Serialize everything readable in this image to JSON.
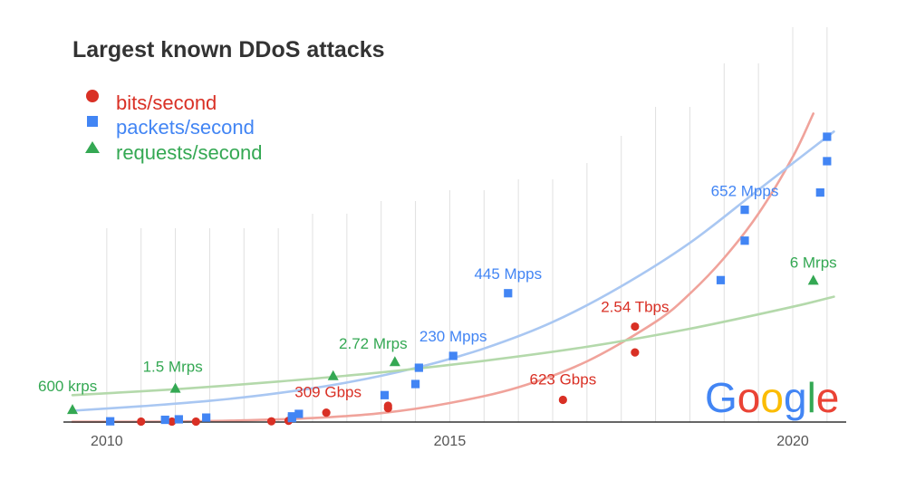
{
  "chart_data": {
    "type": "scatter",
    "title": "Largest known DDoS attacks",
    "xlabel": "",
    "ylabel": "",
    "x_ticks": [
      2010,
      2015,
      2020
    ],
    "xlim": [
      2009.5,
      2020.7
    ],
    "gridlines_x": [
      2010,
      2010.5,
      2011,
      2011.5,
      2012,
      2012.5,
      2013,
      2013.5,
      2014,
      2014.5,
      2015,
      2015.5,
      2016,
      2016.5,
      2017,
      2017.5,
      2018,
      2018.5,
      2019,
      2019.5,
      2020,
      2020.5
    ],
    "grid": true,
    "legend_position": "top-left",
    "y_axis_visible": false,
    "series": [
      {
        "name": "bits/second",
        "marker": "circle",
        "color": "#d93025",
        "trend_color": "#f0a39b",
        "points": [
          {
            "x": 2010.5,
            "y": 0.2
          },
          {
            "x": 2010.95,
            "y": 0.2
          },
          {
            "x": 2011.3,
            "y": 0.2
          },
          {
            "x": 2012.4,
            "y": 0.3
          },
          {
            "x": 2012.65,
            "y": 0.5
          },
          {
            "x": 2013.2,
            "y": 3.8
          },
          {
            "x": 2014.1,
            "y": 5.6
          },
          {
            "x": 2014.1,
            "y": 6.6
          },
          {
            "x": 2016.65,
            "y": 9.0
          },
          {
            "x": 2017.7,
            "y": 28.2
          },
          {
            "x": 2017.7,
            "y": 38.7
          }
        ],
        "trend": [
          {
            "x": 2009.5,
            "y": 0.1
          },
          {
            "x": 2011,
            "y": 0.2
          },
          {
            "x": 2012,
            "y": 0.7
          },
          {
            "x": 2013,
            "y": 1.6
          },
          {
            "x": 2014,
            "y": 3.6
          },
          {
            "x": 2015,
            "y": 7.7
          },
          {
            "x": 2016,
            "y": 14.1
          },
          {
            "x": 2017,
            "y": 24.6
          },
          {
            "x": 2018,
            "y": 40.6
          },
          {
            "x": 2018.5,
            "y": 52.0
          },
          {
            "x": 2019,
            "y": 66.5
          },
          {
            "x": 2019.5,
            "y": 84.4
          },
          {
            "x": 2020,
            "y": 107.4
          },
          {
            "x": 2020.3,
            "y": 125.0
          }
        ]
      },
      {
        "name": "packets/second",
        "marker": "square",
        "color": "#4285f4",
        "trend_color": "#a9c7f2",
        "points": [
          {
            "x": 2010.05,
            "y": 0.3
          },
          {
            "x": 2010.85,
            "y": 0.9
          },
          {
            "x": 2011.05,
            "y": 1.1
          },
          {
            "x": 2011.45,
            "y": 1.8
          },
          {
            "x": 2012.7,
            "y": 1.6
          },
          {
            "x": 2012.7,
            "y": 2.3
          },
          {
            "x": 2012.8,
            "y": 3.3
          },
          {
            "x": 2014.05,
            "y": 10.9
          },
          {
            "x": 2014.5,
            "y": 15.4
          },
          {
            "x": 2014.55,
            "y": 22.0
          },
          {
            "x": 2015.05,
            "y": 26.8
          },
          {
            "x": 2015.85,
            "y": 52.2
          },
          {
            "x": 2018.95,
            "y": 57.5
          },
          {
            "x": 2019.3,
            "y": 73.5
          },
          {
            "x": 2019.3,
            "y": 86.0
          },
          {
            "x": 2020.4,
            "y": 93.0
          },
          {
            "x": 2020.5,
            "y": 105.7
          },
          {
            "x": 2020.5,
            "y": 115.6
          }
        ],
        "trend": [
          {
            "x": 2009.5,
            "y": 4.6
          },
          {
            "x": 2010.5,
            "y": 6.4
          },
          {
            "x": 2011.5,
            "y": 8.6
          },
          {
            "x": 2012.5,
            "y": 11.7
          },
          {
            "x": 2013.5,
            "y": 16.0
          },
          {
            "x": 2014.5,
            "y": 21.9
          },
          {
            "x": 2015.5,
            "y": 29.8
          },
          {
            "x": 2016.5,
            "y": 40.5
          },
          {
            "x": 2017.5,
            "y": 55.0
          },
          {
            "x": 2018.5,
            "y": 72.6
          },
          {
            "x": 2019.5,
            "y": 94.1
          },
          {
            "x": 2020.6,
            "y": 117.7
          }
        ]
      },
      {
        "name": "requests/second",
        "marker": "triangle",
        "color": "#34a853",
        "trend_color": "#b4d9ab",
        "points": [
          {
            "x": 2009.5,
            "y": 5.1
          },
          {
            "x": 2011.0,
            "y": 13.7
          },
          {
            "x": 2013.3,
            "y": 18.8
          },
          {
            "x": 2014.2,
            "y": 24.5
          },
          {
            "x": 2020.3,
            "y": 57.5
          }
        ],
        "trend": [
          {
            "x": 2009.5,
            "y": 10.9
          },
          {
            "x": 2011,
            "y": 13.3
          },
          {
            "x": 2012.5,
            "y": 16.4
          },
          {
            "x": 2014,
            "y": 20.1
          },
          {
            "x": 2015.5,
            "y": 24.8
          },
          {
            "x": 2017,
            "y": 30.5
          },
          {
            "x": 2018.5,
            "y": 37.8
          },
          {
            "x": 2020,
            "y": 46.7
          },
          {
            "x": 2020.6,
            "y": 50.8
          }
        ]
      }
    ],
    "ylim": [
      0,
      160
    ],
    "annotations": [
      {
        "text": "600 krps",
        "series": "requests/second",
        "x": 2009.5,
        "y": 5.1,
        "anchor": "start",
        "dx": -38,
        "dy": -20
      },
      {
        "text": "1.5 Mrps",
        "series": "requests/second",
        "x": 2011.0,
        "y": 13.7,
        "anchor": "start",
        "dx": -36,
        "dy": -18
      },
      {
        "text": "309 Gbps",
        "series": "bits/second",
        "x": 2013.2,
        "y": 3.8,
        "anchor": "middle",
        "dx": 2,
        "dy": -17
      },
      {
        "text": "2.72 Mrps",
        "series": "requests/second",
        "x": 2014.2,
        "y": 24.5,
        "anchor": "middle",
        "dx": -24,
        "dy": -14
      },
      {
        "text": "230 Mpps",
        "series": "packets/second",
        "x": 2015.05,
        "y": 26.8,
        "anchor": "middle",
        "dx": 0,
        "dy": -16
      },
      {
        "text": "445 Mpps",
        "series": "packets/second",
        "x": 2015.85,
        "y": 52.2,
        "anchor": "middle",
        "dx": 0,
        "dy": -16
      },
      {
        "text": "623 Gbps",
        "series": "bits/second",
        "x": 2016.65,
        "y": 9.0,
        "anchor": "middle",
        "dx": 0,
        "dy": -17
      },
      {
        "text": "2.54 Tbps",
        "series": "bits/second",
        "x": 2017.7,
        "y": 38.7,
        "anchor": "middle",
        "dx": 0,
        "dy": -16
      },
      {
        "text": "652 Mpps",
        "series": "packets/second",
        "x": 2019.3,
        "y": 86.0,
        "anchor": "middle",
        "dx": 0,
        "dy": -15
      },
      {
        "text": "6 Mrps",
        "series": "requests/second",
        "x": 2020.3,
        "y": 57.5,
        "anchor": "middle",
        "dx": 0,
        "dy": -14
      }
    ]
  },
  "logo": {
    "letters": [
      {
        "char": "G",
        "color": "#4285f4"
      },
      {
        "char": "o",
        "color": "#ea4335"
      },
      {
        "char": "o",
        "color": "#fbbc05"
      },
      {
        "char": "g",
        "color": "#4285f4"
      },
      {
        "char": "l",
        "color": "#34a853"
      },
      {
        "char": "e",
        "color": "#ea4335"
      }
    ]
  },
  "colors": {
    "gridline": "#e0e0e0",
    "baseline": "#333333",
    "title": "#333333"
  }
}
